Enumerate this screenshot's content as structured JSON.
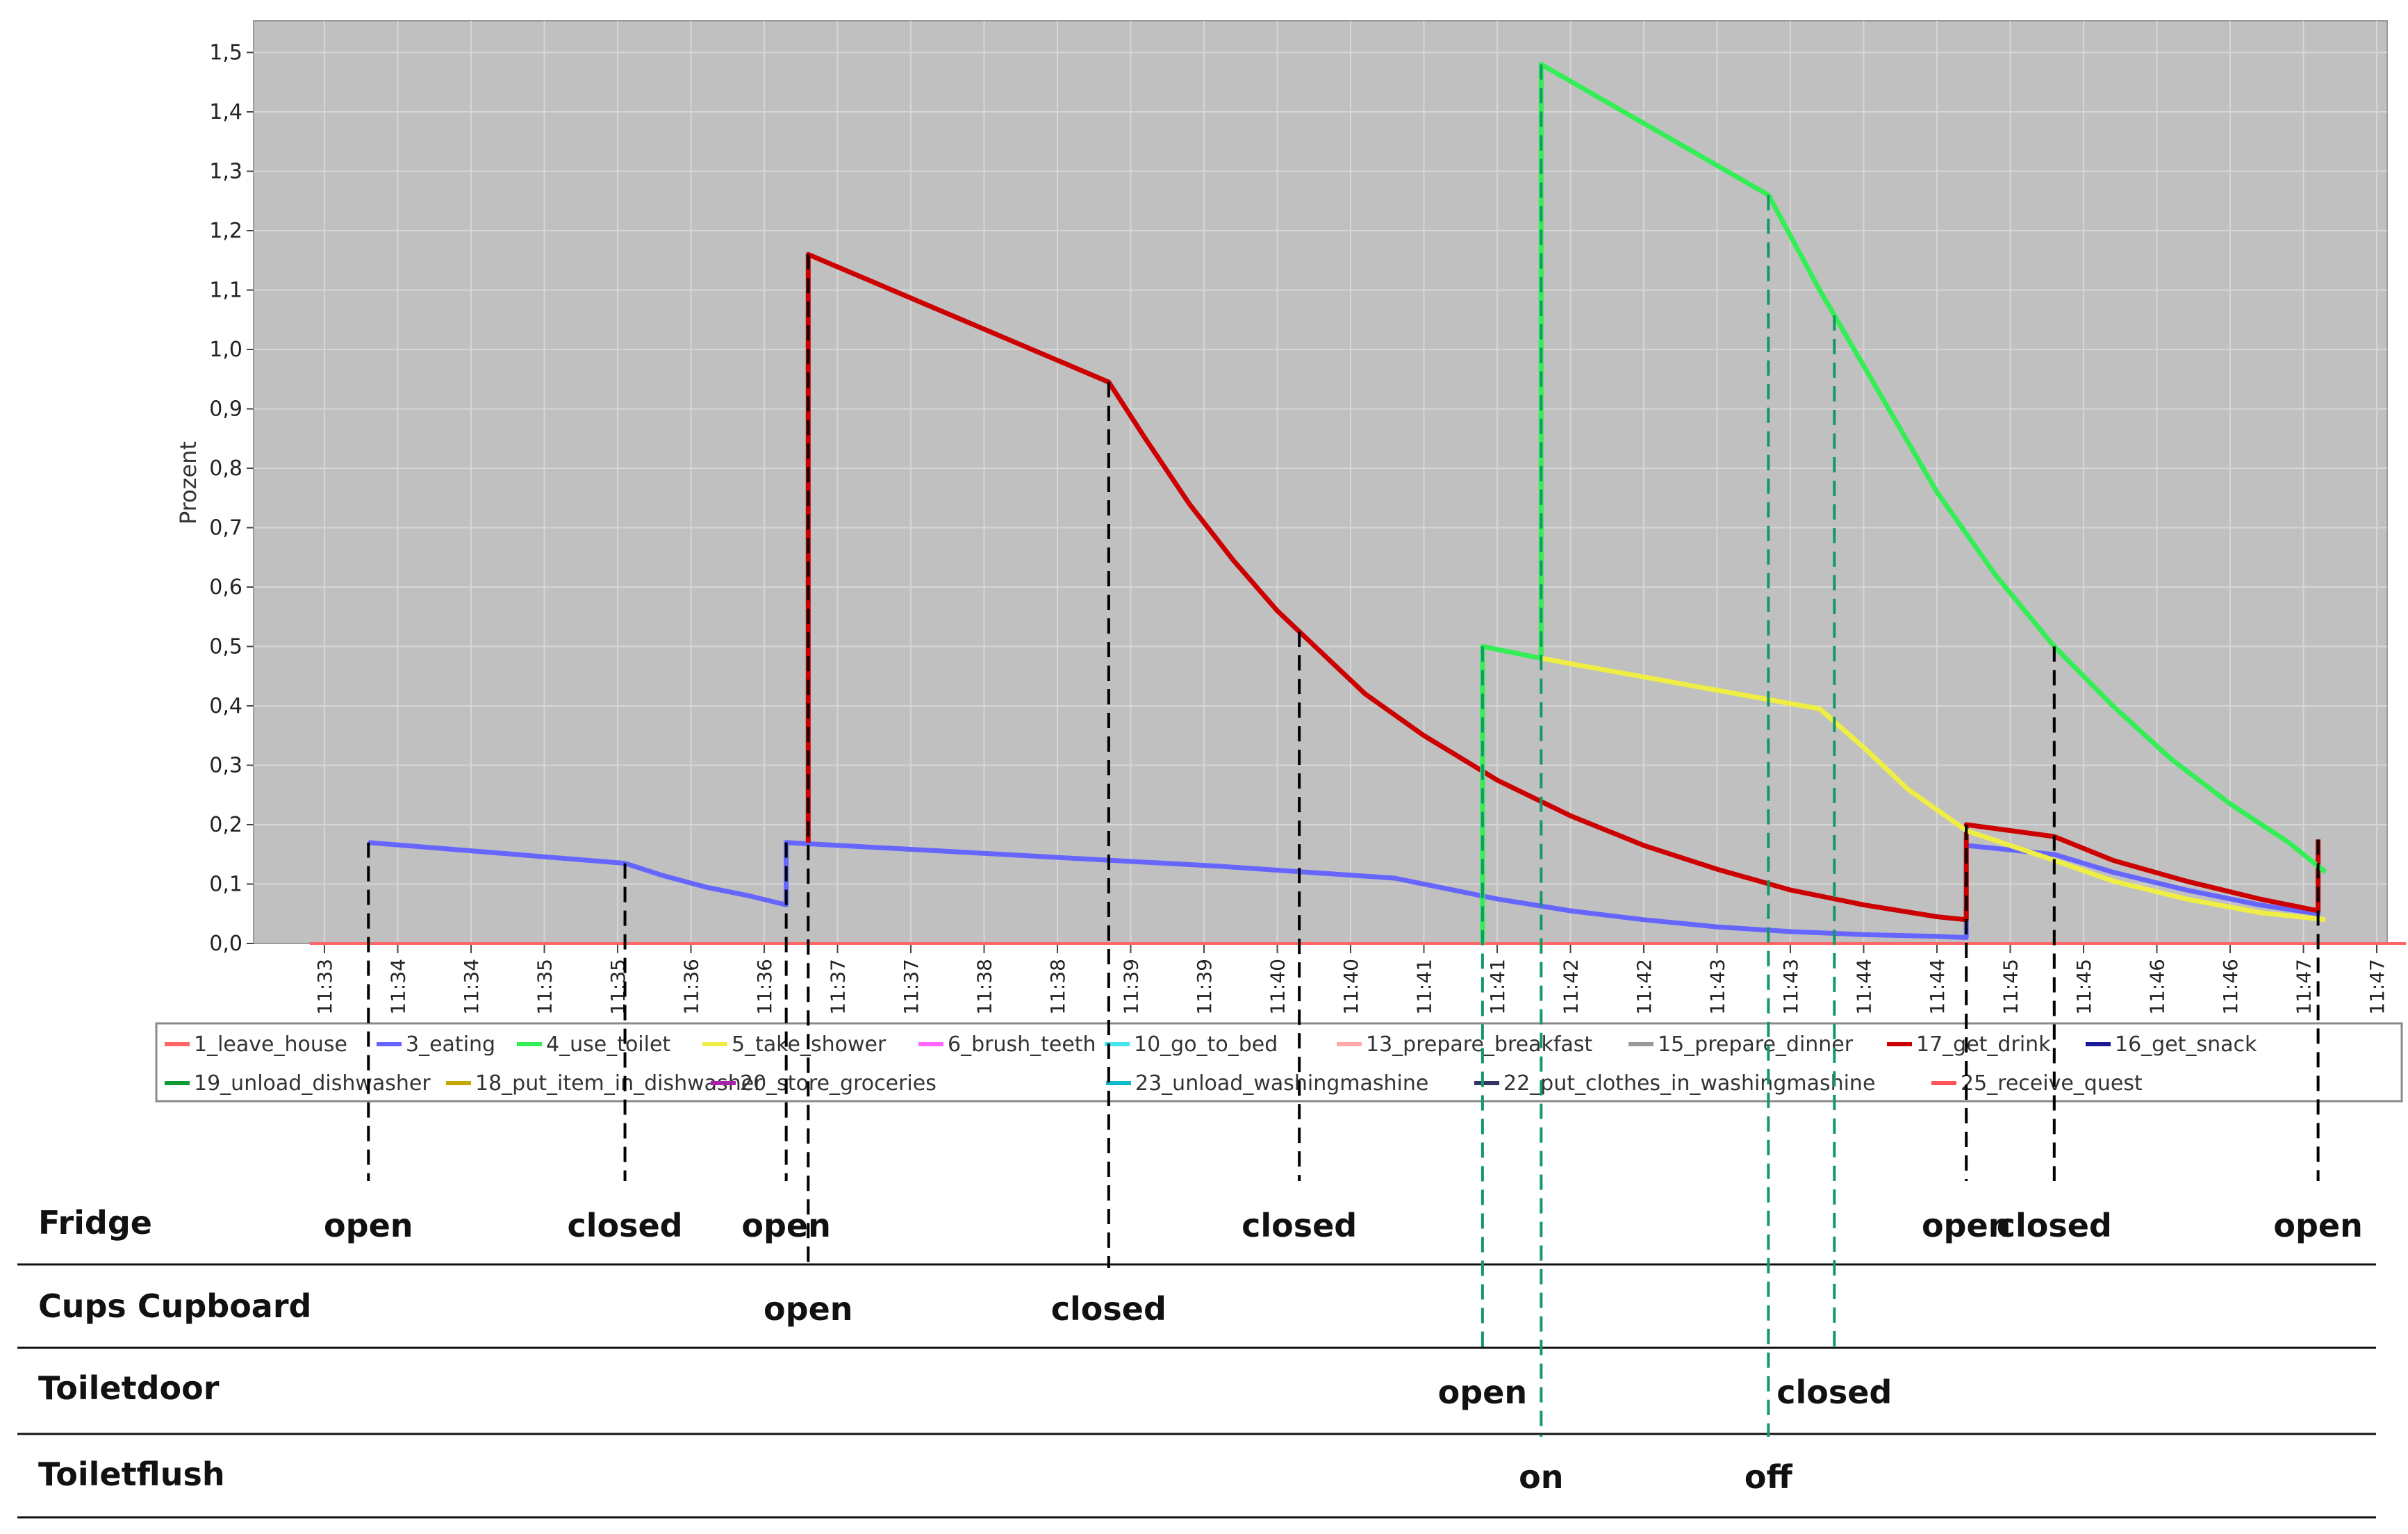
{
  "chart_data": {
    "type": "line",
    "ylabel": "Prozent",
    "ylim": [
      0,
      1.5
    ],
    "y_ticks": [
      "0,0",
      "0,1",
      "0,2",
      "0,3",
      "0,4",
      "0,5",
      "0,6",
      "0,7",
      "0,8",
      "0,9",
      "1,0",
      "1,1",
      "1,2",
      "1,3",
      "1,4",
      "1,5"
    ],
    "x_range_minutes": [
      32.9,
      47.2
    ],
    "x_ticks": [
      {
        "label": "11:33",
        "t": 33.0
      },
      {
        "label": "11:34",
        "t": 33.5
      },
      {
        "label": "11:34",
        "t": 34.0
      },
      {
        "label": "11:35",
        "t": 34.5
      },
      {
        "label": "11:35",
        "t": 35.0
      },
      {
        "label": "11:36",
        "t": 35.5
      },
      {
        "label": "11:36",
        "t": 36.0
      },
      {
        "label": "11:37",
        "t": 36.5
      },
      {
        "label": "11:37",
        "t": 37.0
      },
      {
        "label": "11:38",
        "t": 37.5
      },
      {
        "label": "11:38",
        "t": 38.0
      },
      {
        "label": "11:39",
        "t": 38.5
      },
      {
        "label": "11:39",
        "t": 39.0
      },
      {
        "label": "11:40",
        "t": 39.5
      },
      {
        "label": "11:40",
        "t": 40.0
      },
      {
        "label": "11:41",
        "t": 40.5
      },
      {
        "label": "11:41",
        "t": 41.0
      },
      {
        "label": "11:42",
        "t": 41.5
      },
      {
        "label": "11:42",
        "t": 42.0
      },
      {
        "label": "11:43",
        "t": 42.5
      },
      {
        "label": "11:43",
        "t": 43.0
      },
      {
        "label": "11:44",
        "t": 43.5
      },
      {
        "label": "11:44",
        "t": 44.0
      },
      {
        "label": "11:45",
        "t": 44.5
      },
      {
        "label": "11:45",
        "t": 45.0
      },
      {
        "label": "11:46",
        "t": 45.5
      },
      {
        "label": "11:46",
        "t": 46.0
      },
      {
        "label": "11:47",
        "t": 46.5
      },
      {
        "label": "11:47",
        "t": 47.0
      }
    ],
    "grid": true,
    "legend_position": "bottom",
    "legend": [
      {
        "name": "1_leave_house",
        "color": "#ff6666",
        "row": 0,
        "col": 0
      },
      {
        "name": "3_eating",
        "color": "#6666ff",
        "row": 0,
        "col": 1
      },
      {
        "name": "4_use_toilet",
        "color": "#33ee55",
        "row": 0,
        "col": 2
      },
      {
        "name": "5_take_shower",
        "color": "#eeee44",
        "row": 0,
        "col": 3
      },
      {
        "name": "6_brush_teeth",
        "color": "#ff66ff",
        "row": 0,
        "col": 4
      },
      {
        "name": "10_go_to_bed",
        "color": "#44e5ee",
        "row": 0,
        "col": 5
      },
      {
        "name": "13_prepare_breakfast",
        "color": "#ffaaaa",
        "row": 0,
        "col": 6
      },
      {
        "name": "15_prepare_dinner",
        "color": "#999999",
        "row": 0,
        "col": 7
      },
      {
        "name": "17_get_drink",
        "color": "#cc0000",
        "row": 0,
        "col": 8
      },
      {
        "name": "16_get_snack",
        "color": "#1a1a99",
        "row": 0,
        "col": 9
      },
      {
        "name": "19_unload_dishwasher",
        "color": "#119933",
        "row": 1,
        "col": 0
      },
      {
        "name": "18_put_item_in_dishwasher",
        "color": "#c7a600",
        "row": 1,
        "col": 1
      },
      {
        "name": "20_store_groceries",
        "color": "#aa22aa",
        "row": 1,
        "col": 2
      },
      {
        "name": "23_unload_washingmashine",
        "color": "#11bbcc",
        "row": 1,
        "col": 3
      },
      {
        "name": "22_put_clothes_in_washingmashine",
        "color": "#333366",
        "row": 1,
        "col": 4
      },
      {
        "name": "25_receive_quest",
        "color": "#ff5555",
        "row": 1,
        "col": 5
      }
    ],
    "series": [
      {
        "key": "1_leave_house",
        "color": "#ff6666",
        "points": [
          [
            32.9,
            0.0
          ],
          [
            47.2,
            0.0
          ]
        ]
      },
      {
        "key": "3_eating",
        "color": "#6666ff",
        "points": [
          [
            33.3,
            0.17
          ],
          [
            35.05,
            0.135
          ],
          [
            35.3,
            0.115
          ],
          [
            35.6,
            0.095
          ],
          [
            35.9,
            0.08
          ],
          [
            36.15,
            0.065
          ],
          [
            36.15,
            0.17
          ],
          [
            39.1,
            0.13
          ],
          [
            40.3,
            0.11
          ],
          [
            40.6,
            0.095
          ],
          [
            41.0,
            0.075
          ],
          [
            41.5,
            0.055
          ],
          [
            42.0,
            0.04
          ],
          [
            42.5,
            0.028
          ],
          [
            43.0,
            0.02
          ],
          [
            43.5,
            0.015
          ],
          [
            44.0,
            0.012
          ],
          [
            44.2,
            0.01
          ],
          [
            44.2,
            0.165
          ],
          [
            44.8,
            0.15
          ],
          [
            45.2,
            0.12
          ],
          [
            45.7,
            0.09
          ],
          [
            46.2,
            0.065
          ],
          [
            46.6,
            0.05
          ],
          [
            46.6,
            0.165
          ]
        ]
      },
      {
        "key": "17_get_drink",
        "color": "#cc0000",
        "points": [
          [
            36.3,
            0.17
          ],
          [
            36.3,
            1.16
          ],
          [
            38.35,
            0.945
          ],
          [
            38.6,
            0.85
          ],
          [
            38.9,
            0.74
          ],
          [
            39.2,
            0.645
          ],
          [
            39.5,
            0.56
          ],
          [
            39.8,
            0.49
          ],
          [
            40.1,
            0.42
          ],
          [
            40.5,
            0.35
          ],
          [
            41.0,
            0.275
          ],
          [
            41.5,
            0.215
          ],
          [
            42.0,
            0.165
          ],
          [
            42.5,
            0.125
          ],
          [
            43.0,
            0.09
          ],
          [
            43.5,
            0.065
          ],
          [
            44.0,
            0.045
          ],
          [
            44.2,
            0.04
          ],
          [
            44.2,
            0.2
          ],
          [
            44.8,
            0.18
          ],
          [
            45.2,
            0.14
          ],
          [
            45.7,
            0.105
          ],
          [
            46.2,
            0.075
          ],
          [
            46.6,
            0.055
          ],
          [
            46.6,
            0.175
          ]
        ]
      },
      {
        "key": "4_use_toilet",
        "color": "#33ee55",
        "points": [
          [
            40.9,
            0.0
          ],
          [
            40.9,
            0.5
          ],
          [
            41.3,
            0.48
          ],
          [
            41.3,
            1.48
          ],
          [
            42.85,
            1.26
          ],
          [
            43.2,
            1.1
          ],
          [
            43.6,
            0.93
          ],
          [
            44.0,
            0.76
          ],
          [
            44.4,
            0.62
          ],
          [
            44.8,
            0.5
          ],
          [
            45.2,
            0.4
          ],
          [
            45.6,
            0.31
          ],
          [
            46.0,
            0.235
          ],
          [
            46.4,
            0.17
          ],
          [
            46.65,
            0.12
          ]
        ]
      },
      {
        "key": "5_take_shower",
        "color": "#eeee44",
        "points": [
          [
            41.3,
            0.48
          ],
          [
            43.2,
            0.395
          ],
          [
            43.5,
            0.33
          ],
          [
            43.8,
            0.26
          ],
          [
            44.2,
            0.19
          ],
          [
            44.8,
            0.14
          ],
          [
            45.2,
            0.105
          ],
          [
            45.7,
            0.075
          ],
          [
            46.2,
            0.052
          ],
          [
            46.65,
            0.04
          ]
        ]
      }
    ]
  },
  "timeline": {
    "rows": [
      {
        "label": "Fridge"
      },
      {
        "label": "Cups Cupboard"
      },
      {
        "label": "Toiletdoor"
      },
      {
        "label": "Toiletflush"
      }
    ],
    "events": [
      {
        "row": 0,
        "label": "open",
        "t": 33.3,
        "color": "#000000"
      },
      {
        "row": 0,
        "label": "closed",
        "t": 35.05,
        "color": "#000000"
      },
      {
        "row": 0,
        "label": "open",
        "t": 36.15,
        "color": "#000000"
      },
      {
        "row": 0,
        "label": "closed",
        "t": 39.65,
        "color": "#000000"
      },
      {
        "row": 0,
        "label": "open",
        "t": 44.2,
        "color": "#000000"
      },
      {
        "row": 0,
        "label": "closed",
        "t": 44.8,
        "color": "#000000"
      },
      {
        "row": 0,
        "label": "open",
        "t": 46.6,
        "color": "#000000"
      },
      {
        "row": 1,
        "label": "open",
        "t": 36.3,
        "color": "#000000"
      },
      {
        "row": 1,
        "label": "closed",
        "t": 38.35,
        "color": "#000000"
      },
      {
        "row": 2,
        "label": "open",
        "t": 40.9,
        "color": "#119966"
      },
      {
        "row": 2,
        "label": "closed",
        "t": 43.3,
        "color": "#119966"
      },
      {
        "row": 3,
        "label": "on",
        "t": 41.3,
        "color": "#119966"
      },
      {
        "row": 3,
        "label": "off",
        "t": 42.85,
        "color": "#119966"
      }
    ]
  }
}
